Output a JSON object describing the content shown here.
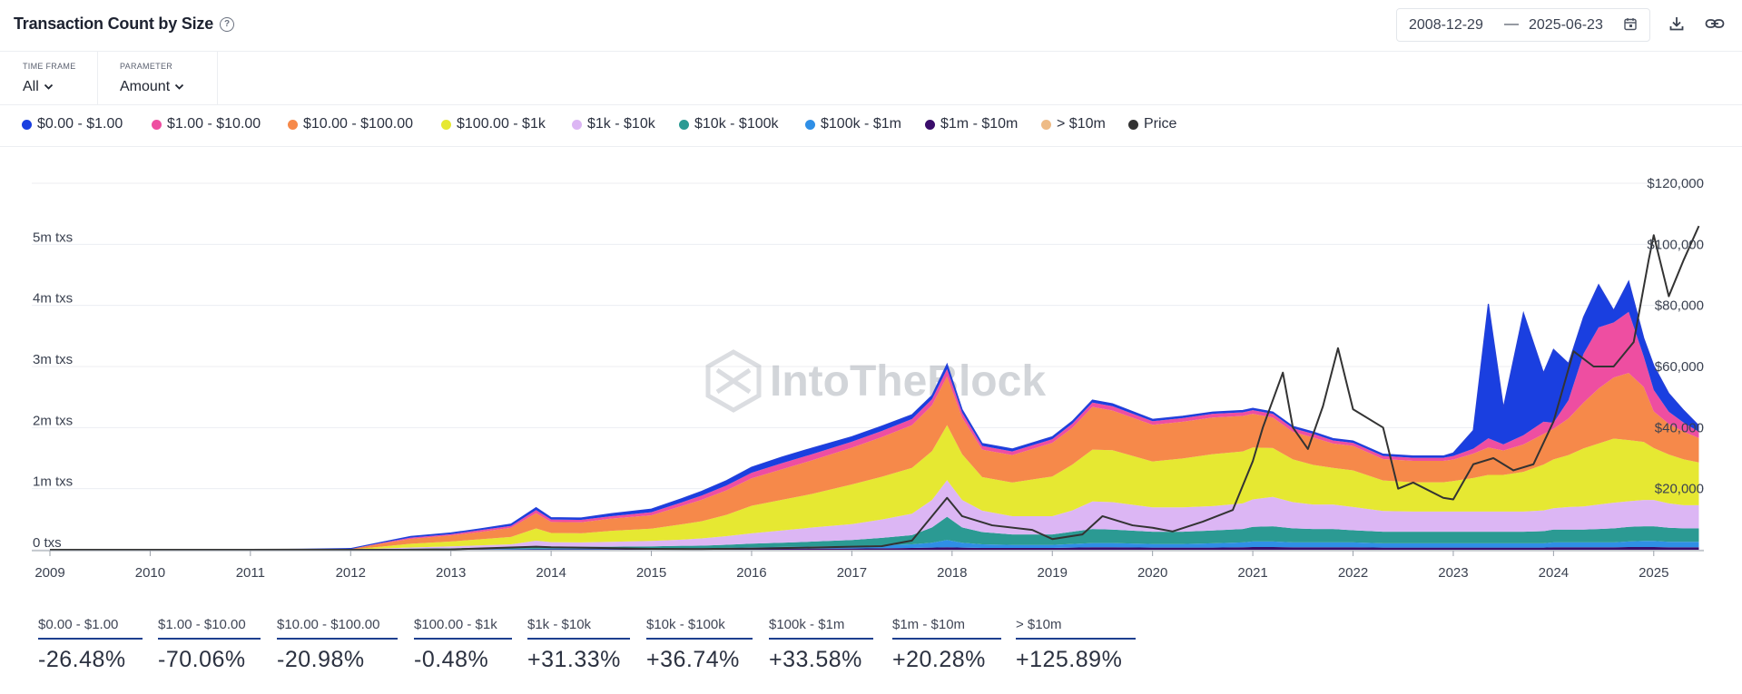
{
  "header": {
    "title": "Transaction Count by Size",
    "date_start": "2008-12-29",
    "date_separator": "—",
    "date_end": "2025-06-23"
  },
  "controls": {
    "time_frame_label": "TIME FRAME",
    "time_frame_value": "All",
    "parameter_label": "PARAMETER",
    "parameter_value": "Amount"
  },
  "legend": [
    {
      "label": "$0.00 - $1.00",
      "color": "#1a3fe0"
    },
    {
      "label": "$1.00 - $10.00",
      "color": "#ee4ea1"
    },
    {
      "label": "$10.00 - $100.00",
      "color": "#f6894a"
    },
    {
      "label": "$100.00 - $1k",
      "color": "#e6e832"
    },
    {
      "label": "$1k - $10k",
      "color": "#dcb6f4"
    },
    {
      "label": "$10k - $100k",
      "color": "#2b9a93"
    },
    {
      "label": "$100k - $1m",
      "color": "#2f8fe6"
    },
    {
      "label": "$1m - $10m",
      "color": "#3a0d6b"
    },
    {
      "label": "> $10m",
      "color": "#eebb86"
    },
    {
      "label": "Price",
      "color": "#333333"
    }
  ],
  "watermark": "IntoTheBlock",
  "chart_data": {
    "type": "area",
    "stacked": true,
    "title": "Transaction Count by Size",
    "x_unit": "year",
    "xlim": [
      2009,
      2025.5
    ],
    "x_tick_labels": [
      "2009",
      "2010",
      "2011",
      "2012",
      "2013",
      "2014",
      "2015",
      "2016",
      "2017",
      "2018",
      "2019",
      "2020",
      "2021",
      "2022",
      "2023",
      "2024",
      "2025"
    ],
    "y_left_ticks": [
      "0 txs",
      "1m txs",
      "2m txs",
      "3m txs",
      "4m txs",
      "5m txs"
    ],
    "ylim_left_m": [
      0,
      6
    ],
    "y_right_ticks": [
      "$20,000",
      "$40,000",
      "$60,000",
      "$80,000",
      "$100,000",
      "$120,000"
    ],
    "ylim_right_usd": [
      0,
      120000
    ],
    "x": [
      2009,
      2010,
      2010.5,
      2011,
      2011.5,
      2012,
      2012.3,
      2012.6,
      2013,
      2013.3,
      2013.6,
      2013.85,
      2014,
      2014.3,
      2014.6,
      2015,
      2015.3,
      2015.5,
      2015.75,
      2016,
      2016.3,
      2016.6,
      2017,
      2017.3,
      2017.6,
      2017.8,
      2017.95,
      2018.1,
      2018.3,
      2018.6,
      2019,
      2019.2,
      2019.4,
      2019.6,
      2020,
      2020.3,
      2020.6,
      2020.9,
      2021,
      2021.2,
      2021.4,
      2021.6,
      2021.8,
      2022,
      2022.3,
      2022.6,
      2022.9,
      2023,
      2023.2,
      2023.35,
      2023.5,
      2023.7,
      2023.9,
      2024,
      2024.15,
      2024.3,
      2024.45,
      2024.6,
      2024.75,
      2024.9,
      2025,
      2025.15,
      2025.3,
      2025.45
    ],
    "series": [
      {
        "name": "$1m - $10m",
        "values": [
          0,
          0,
          0,
          0,
          0,
          0,
          0.002,
          0.003,
          0.004,
          0.005,
          0.006,
          0.007,
          0.008,
          0.008,
          0.008,
          0.01,
          0.01,
          0.01,
          0.012,
          0.015,
          0.016,
          0.018,
          0.02,
          0.025,
          0.03,
          0.035,
          0.04,
          0.035,
          0.03,
          0.03,
          0.03,
          0.035,
          0.04,
          0.04,
          0.035,
          0.035,
          0.035,
          0.04,
          0.045,
          0.045,
          0.04,
          0.04,
          0.04,
          0.04,
          0.035,
          0.035,
          0.035,
          0.035,
          0.035,
          0.035,
          0.035,
          0.035,
          0.035,
          0.04,
          0.04,
          0.04,
          0.04,
          0.04,
          0.045,
          0.045,
          0.045,
          0.04,
          0.04,
          0.04
        ]
      },
      {
        "name": "$100k - $1m",
        "values": [
          0,
          0,
          0,
          0,
          0,
          0,
          0.003,
          0.005,
          0.006,
          0.008,
          0.009,
          0.012,
          0.012,
          0.012,
          0.012,
          0.015,
          0.015,
          0.016,
          0.02,
          0.025,
          0.03,
          0.035,
          0.04,
          0.05,
          0.06,
          0.08,
          0.12,
          0.08,
          0.06,
          0.05,
          0.05,
          0.06,
          0.07,
          0.07,
          0.06,
          0.06,
          0.07,
          0.08,
          0.09,
          0.09,
          0.08,
          0.08,
          0.08,
          0.08,
          0.07,
          0.07,
          0.07,
          0.07,
          0.07,
          0.07,
          0.07,
          0.07,
          0.07,
          0.08,
          0.08,
          0.08,
          0.08,
          0.08,
          0.09,
          0.1,
          0.1,
          0.09,
          0.09,
          0.09
        ]
      },
      {
        "name": "$10k - $100k",
        "values": [
          0,
          0,
          0,
          0,
          0,
          0,
          0.005,
          0.01,
          0.015,
          0.02,
          0.025,
          0.04,
          0.035,
          0.03,
          0.03,
          0.03,
          0.04,
          0.04,
          0.05,
          0.06,
          0.07,
          0.08,
          0.1,
          0.12,
          0.15,
          0.25,
          0.38,
          0.25,
          0.2,
          0.17,
          0.17,
          0.2,
          0.23,
          0.22,
          0.2,
          0.2,
          0.21,
          0.22,
          0.24,
          0.25,
          0.23,
          0.22,
          0.22,
          0.2,
          0.19,
          0.19,
          0.19,
          0.19,
          0.19,
          0.19,
          0.19,
          0.19,
          0.2,
          0.21,
          0.21,
          0.21,
          0.22,
          0.23,
          0.24,
          0.24,
          0.24,
          0.23,
          0.22,
          0.22
        ]
      },
      {
        "name": "$1k - $10k",
        "values": [
          0,
          0,
          0,
          0,
          0,
          0,
          0.01,
          0.02,
          0.03,
          0.04,
          0.05,
          0.09,
          0.07,
          0.07,
          0.08,
          0.09,
          0.1,
          0.12,
          0.14,
          0.17,
          0.2,
          0.23,
          0.26,
          0.3,
          0.35,
          0.45,
          0.6,
          0.45,
          0.35,
          0.3,
          0.3,
          0.35,
          0.45,
          0.45,
          0.4,
          0.4,
          0.4,
          0.42,
          0.45,
          0.48,
          0.43,
          0.4,
          0.4,
          0.38,
          0.34,
          0.33,
          0.33,
          0.33,
          0.33,
          0.33,
          0.33,
          0.33,
          0.34,
          0.35,
          0.37,
          0.38,
          0.4,
          0.42,
          0.42,
          0.43,
          0.43,
          0.4,
          0.38,
          0.38
        ]
      },
      {
        "name": "$100.00 - $1k",
        "values": [
          0,
          0,
          0,
          0,
          0,
          0.005,
          0.03,
          0.06,
          0.08,
          0.1,
          0.12,
          0.2,
          0.15,
          0.15,
          0.18,
          0.2,
          0.25,
          0.28,
          0.35,
          0.45,
          0.5,
          0.55,
          0.65,
          0.7,
          0.75,
          0.8,
          0.9,
          0.75,
          0.55,
          0.55,
          0.65,
          0.75,
          0.85,
          0.85,
          0.75,
          0.8,
          0.85,
          0.85,
          0.85,
          0.8,
          0.7,
          0.65,
          0.6,
          0.6,
          0.5,
          0.48,
          0.48,
          0.5,
          0.55,
          0.6,
          0.6,
          0.65,
          0.75,
          0.8,
          0.85,
          0.95,
          1.0,
          1.05,
          1.0,
          0.95,
          0.85,
          0.8,
          0.75,
          0.7
        ]
      },
      {
        "name": "$10.00 - $100.00",
        "values": [
          0,
          0,
          0,
          0,
          0.005,
          0.01,
          0.05,
          0.08,
          0.1,
          0.12,
          0.15,
          0.25,
          0.18,
          0.18,
          0.2,
          0.22,
          0.3,
          0.35,
          0.4,
          0.45,
          0.5,
          0.55,
          0.6,
          0.65,
          0.7,
          0.75,
          0.8,
          0.6,
          0.45,
          0.45,
          0.55,
          0.6,
          0.7,
          0.65,
          0.6,
          0.6,
          0.6,
          0.58,
          0.55,
          0.5,
          0.45,
          0.45,
          0.4,
          0.4,
          0.35,
          0.35,
          0.35,
          0.35,
          0.4,
          0.45,
          0.4,
          0.45,
          0.5,
          0.5,
          0.6,
          0.75,
          0.9,
          1.0,
          1.1,
          0.9,
          0.6,
          0.5,
          0.45,
          0.4
        ]
      },
      {
        "name": "$1.00 - $10.00",
        "values": [
          0,
          0,
          0,
          0,
          0.002,
          0.005,
          0.01,
          0.02,
          0.02,
          0.03,
          0.03,
          0.05,
          0.04,
          0.04,
          0.04,
          0.05,
          0.06,
          0.07,
          0.08,
          0.09,
          0.1,
          0.1,
          0.1,
          0.1,
          0.1,
          0.1,
          0.12,
          0.08,
          0.06,
          0.06,
          0.06,
          0.07,
          0.07,
          0.07,
          0.06,
          0.06,
          0.06,
          0.06,
          0.06,
          0.06,
          0.06,
          0.06,
          0.05,
          0.05,
          0.05,
          0.05,
          0.05,
          0.06,
          0.08,
          0.15,
          0.1,
          0.15,
          0.2,
          0.1,
          0.3,
          0.8,
          1.0,
          0.9,
          1.0,
          0.5,
          0.35,
          0.2,
          0.15,
          0.1
        ]
      },
      {
        "name": "$0.00 - $1.00",
        "values": [
          0,
          0,
          0,
          0,
          0,
          0,
          0.01,
          0.02,
          0.02,
          0.02,
          0.03,
          0.04,
          0.03,
          0.03,
          0.04,
          0.05,
          0.06,
          0.07,
          0.08,
          0.09,
          0.1,
          0.1,
          0.08,
          0.08,
          0.07,
          0.06,
          0.08,
          0.05,
          0.04,
          0.04,
          0.04,
          0.04,
          0.04,
          0.04,
          0.03,
          0.03,
          0.03,
          0.03,
          0.03,
          0.03,
          0.03,
          0.03,
          0.03,
          0.03,
          0.03,
          0.03,
          0.03,
          0.05,
          0.3,
          2.2,
          0.6,
          2.0,
          0.8,
          1.2,
          0.6,
          0.6,
          0.7,
          0.2,
          0.5,
          0.3,
          0.4,
          0.3,
          0.2,
          0.1
        ]
      },
      {
        "name": "> $10m",
        "values": [
          0,
          0,
          0,
          0,
          0,
          0,
          0,
          0,
          0,
          0,
          0,
          0,
          0,
          0,
          0,
          0,
          0,
          0,
          0,
          0,
          0,
          0,
          0,
          0,
          0,
          0,
          0,
          0,
          0,
          0,
          0,
          0,
          0,
          0,
          0,
          0,
          0,
          0,
          0,
          0,
          0,
          0,
          0,
          0,
          0,
          0,
          0,
          0,
          0,
          0,
          0,
          0,
          0,
          0,
          0,
          0,
          0,
          0,
          0,
          0,
          0,
          0,
          0,
          0
        ]
      }
    ],
    "price_line": {
      "name": "Price",
      "x": [
        2009,
        2010,
        2011,
        2011.4,
        2012,
        2012.5,
        2013,
        2013.85,
        2014,
        2014.5,
        2015,
        2015.5,
        2016,
        2016.5,
        2017,
        2017.3,
        2017.6,
        2017.95,
        2018.1,
        2018.4,
        2018.8,
        2019,
        2019.3,
        2019.5,
        2019.8,
        2020,
        2020.2,
        2020.5,
        2020.8,
        2021,
        2021.1,
        2021.3,
        2021.4,
        2021.55,
        2021.7,
        2021.85,
        2022,
        2022.3,
        2022.45,
        2022.6,
        2022.9,
        2023,
        2023.2,
        2023.4,
        2023.6,
        2023.8,
        2024,
        2024.2,
        2024.4,
        2024.6,
        2024.8,
        2024.95,
        2025,
        2025.15,
        2025.3,
        2025.45
      ],
      "values": [
        0,
        0,
        0,
        30,
        10,
        10,
        100,
        1000,
        800,
        600,
        300,
        250,
        400,
        650,
        1000,
        1200,
        3000,
        17000,
        11000,
        8000,
        6500,
        3500,
        5000,
        11000,
        8000,
        7200,
        6000,
        9200,
        13000,
        29000,
        40000,
        58000,
        40000,
        33000,
        47000,
        66000,
        46000,
        40000,
        20000,
        22000,
        17000,
        16500,
        28000,
        30000,
        26000,
        28000,
        42000,
        65000,
        60000,
        60000,
        68000,
        95000,
        103000,
        83000,
        95000,
        106000
      ]
    }
  },
  "stats": [
    {
      "label": "$0.00 - $1.00",
      "value": "-26.48%"
    },
    {
      "label": "$1.00 - $10.00",
      "value": "-70.06%"
    },
    {
      "label": "$10.00 - $100.00",
      "value": "-20.98%"
    },
    {
      "label": "$100.00 - $1k",
      "value": "-0.48%"
    },
    {
      "label": "$1k - $10k",
      "value": "+31.33%"
    },
    {
      "label": "$10k - $100k",
      "value": "+36.74%"
    },
    {
      "label": "$100k - $1m",
      "value": "+33.58%"
    },
    {
      "label": "$1m - $10m",
      "value": "+20.28%"
    },
    {
      "label": "> $10m",
      "value": "+125.89%"
    }
  ]
}
